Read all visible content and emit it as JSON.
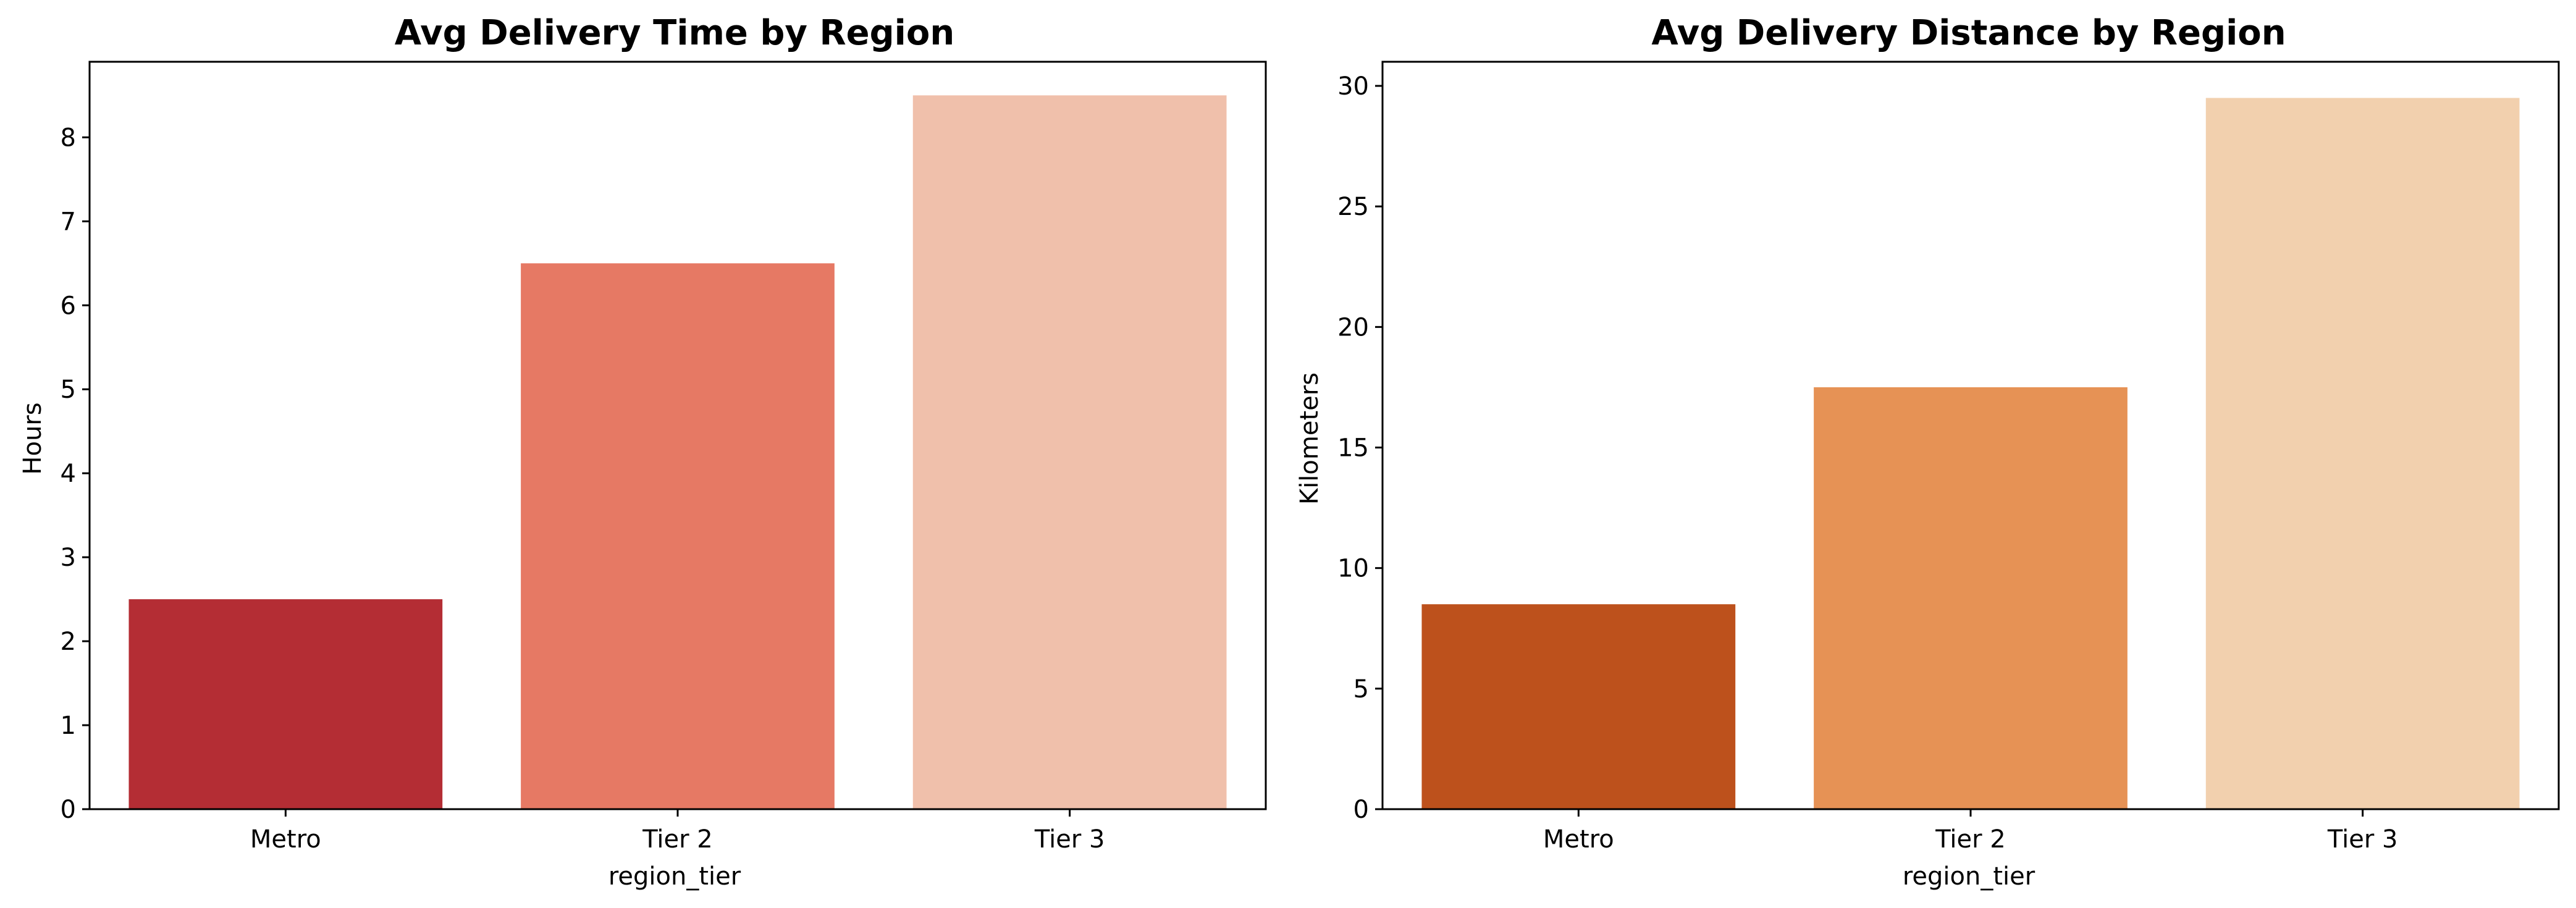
{
  "chart_data": [
    {
      "type": "bar",
      "title": "Avg Delivery Time by Region",
      "xlabel": "region_tier",
      "ylabel": "Hours",
      "categories": [
        "Metro",
        "Tier 2",
        "Tier 3"
      ],
      "values": [
        2.5,
        6.5,
        8.5
      ],
      "colors": [
        "#b42d34",
        "#e67964",
        "#f0c0ab"
      ],
      "ylim": [
        0,
        8.9
      ],
      "yticks": [
        0,
        1,
        2,
        3,
        4,
        5,
        6,
        7,
        8
      ],
      "grid": false,
      "legend": "none"
    },
    {
      "type": "bar",
      "title": "Avg Delivery Distance by Region",
      "xlabel": "region_tier",
      "ylabel": "Kilometers",
      "categories": [
        "Metro",
        "Tier 2",
        "Tier 3"
      ],
      "values": [
        8.5,
        17.5,
        29.5
      ],
      "colors": [
        "#bd511c",
        "#e69255",
        "#f2d0ae"
      ],
      "ylim": [
        0,
        31
      ],
      "yticks": [
        0,
        5,
        10,
        15,
        20,
        25,
        30
      ],
      "grid": false,
      "legend": "none"
    }
  ]
}
